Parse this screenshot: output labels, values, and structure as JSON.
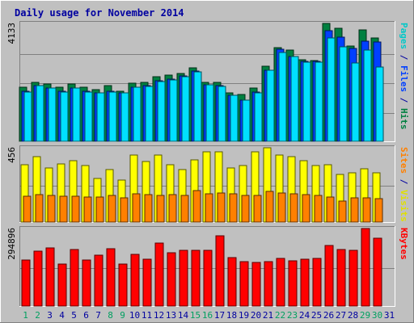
{
  "chart_data": {
    "type": "bar",
    "title": "Daily usage for November 2014",
    "days": [
      "1",
      "2",
      "3",
      "4",
      "5",
      "6",
      "7",
      "8",
      "9",
      "10",
      "11",
      "12",
      "13",
      "14",
      "15",
      "16",
      "17",
      "18",
      "19",
      "20",
      "21",
      "22",
      "23",
      "24",
      "25",
      "26",
      "27",
      "28",
      "29",
      "30",
      "31"
    ],
    "weekend_days": [
      1,
      2,
      8,
      9,
      15,
      16,
      22,
      23,
      29,
      30
    ],
    "panels": [
      {
        "id": "requests",
        "max_label": "4133",
        "ymax": 4133,
        "axis_labels": [
          {
            "text": "Pages",
            "color": "#00c8c8"
          },
          {
            "text": " / ",
            "color": "#0000a0"
          },
          {
            "text": "Files",
            "color": "#0040ff"
          },
          {
            "text": " / ",
            "color": "#0000a0"
          },
          {
            "text": "Hits",
            "color": "#008040"
          }
        ],
        "series": [
          {
            "name": "Hits",
            "color": "#008040",
            "values": [
              1900,
              2060,
              2020,
              1910,
              2010,
              1890,
              1800,
              1940,
              1760,
              2040,
              2070,
              2260,
              2310,
              2370,
              2590,
              2070,
              2070,
              1710,
              1640,
              1870,
              2620,
              3270,
              3210,
              2860,
              2840,
              4133,
              3960,
              3340,
              3900,
              3620,
              0
            ]
          },
          {
            "name": "Files",
            "color": "#0040ff",
            "values": [
              1750,
              1960,
              1870,
              1750,
              1870,
              1760,
              1710,
              1760,
              1710,
              1910,
              1950,
              2110,
              2180,
              2290,
              2450,
              1990,
              1940,
              1620,
              1450,
              1720,
              2500,
              3230,
              2980,
              2800,
              2800,
              3870,
              3640,
              3250,
              3520,
              3480,
              0
            ]
          },
          {
            "name": "Pages",
            "color": "#00e0ff",
            "values": [
              1740,
              1950,
              1860,
              1740,
              1860,
              1740,
              1700,
              1740,
              1690,
              1890,
              1930,
              2090,
              2160,
              2270,
              2440,
              1970,
              1920,
              1610,
              1430,
              1710,
              2480,
              3100,
              2960,
              2780,
              2780,
              3610,
              3320,
              2750,
              3210,
              2610,
              0
            ]
          }
        ]
      },
      {
        "id": "visits",
        "max_label": "456",
        "ymax": 456,
        "axis_labels": [
          {
            "text": "Sites",
            "color": "#ff8000"
          },
          {
            "text": " / ",
            "color": "#0000a0"
          },
          {
            "text": "Visits",
            "color": "#e0e000"
          }
        ],
        "series": [
          {
            "name": "Visits",
            "color": "#ffff00",
            "values": [
              350,
              400,
              330,
              355,
              375,
              345,
              270,
              320,
              260,
              410,
              370,
              410,
              350,
              320,
              380,
              430,
              430,
              330,
              345,
              430,
              456,
              410,
              400,
              375,
              345,
              350,
              290,
              300,
              325,
              300,
              0
            ]
          },
          {
            "name": "Sites",
            "color": "#ff8000",
            "values": [
              160,
              170,
              165,
              160,
              160,
              155,
              155,
              165,
              150,
              175,
              170,
              165,
              170,
              165,
              195,
              175,
              180,
              175,
              165,
              165,
              190,
              180,
              175,
              170,
              165,
              155,
              130,
              150,
              150,
              145,
              0
            ]
          }
        ]
      },
      {
        "id": "kbytes",
        "max_label": "294896",
        "ymax": 294896,
        "axis_labels": [
          {
            "text": "KBytes",
            "color": "#ff0000"
          }
        ],
        "series": [
          {
            "name": "KBytes",
            "color": "#ff0000",
            "values": [
              175000,
              208000,
              222000,
              160000,
              215000,
              175000,
              192000,
              218000,
              160000,
              197000,
              178000,
              239000,
              202000,
              211000,
              213000,
              213000,
              268000,
              183000,
              168000,
              166000,
              168000,
              181000,
              172000,
              178000,
              181000,
              229000,
              215000,
              213000,
              294896,
              257000,
              0
            ]
          }
        ]
      }
    ]
  },
  "colors": {
    "background": "#c0c0c0",
    "plot_background": "#c0c0c0",
    "title": "#0000a0",
    "weekday_label": "#0000a0",
    "weekend_label": "#00a060",
    "gridline": "#808080"
  }
}
